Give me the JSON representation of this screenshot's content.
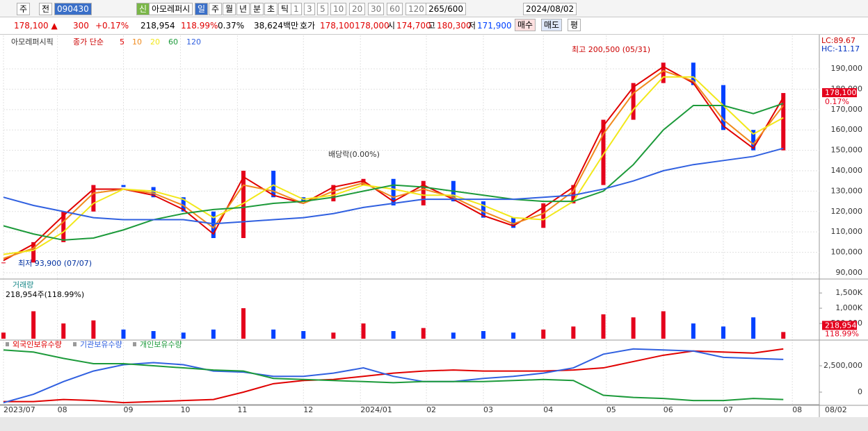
{
  "toolbar": {
    "mode": "주",
    "prev": "전",
    "code": "090430",
    "tag": "신",
    "name": "아모레퍼시",
    "periods": [
      "일",
      "주",
      "월",
      "년",
      "분",
      "초",
      "틱"
    ],
    "intervals": [
      "1",
      "3",
      "5",
      "10",
      "20",
      "30",
      "60",
      "120"
    ],
    "count": "265",
    "count_total": "/600",
    "date": "2024/08/02"
  },
  "quote": {
    "price": "178,100 ▲",
    "change": "300",
    "pct": "+0.17%",
    "volume": "218,954",
    "vol_ratio": "118.99%",
    "turnover": "0.37%",
    "amount": "38,624백만",
    "ask_label": "호가",
    "ask": "178,100",
    "bid": "178,000",
    "open_label": "시",
    "open": "174,700",
    "high_label": "고",
    "high": "180,300",
    "low_label": "저",
    "low": "171,900",
    "buy": "매수",
    "sell": "매도",
    "avg": "평"
  },
  "chart_data": [
    {
      "type": "line",
      "title": "아모레퍼시픽",
      "legend_prefix": "종가 단순",
      "x": [
        0,
        10,
        20,
        30,
        40,
        50,
        60,
        70,
        80,
        90,
        100,
        110,
        120,
        130,
        140,
        150,
        160,
        170,
        180,
        190,
        200,
        210,
        220,
        230,
        240,
        250,
        260
      ],
      "xlim": [
        0,
        272
      ],
      "xticks": [
        {
          "value": 0,
          "label": "2023/07"
        },
        {
          "value": 18,
          "label": "08"
        },
        {
          "value": 40,
          "label": "09"
        },
        {
          "value": 59,
          "label": "10"
        },
        {
          "value": 78,
          "label": "11"
        },
        {
          "value": 100,
          "label": "12"
        },
        {
          "value": 119,
          "label": "2024/01"
        },
        {
          "value": 141,
          "label": "02"
        },
        {
          "value": 160,
          "label": "03"
        },
        {
          "value": 180,
          "label": "04"
        },
        {
          "value": 201,
          "label": "05"
        },
        {
          "value": 220,
          "label": "06"
        },
        {
          "value": 240,
          "label": "07"
        },
        {
          "value": 263,
          "label": "08"
        }
      ],
      "x_end_label": "08/02",
      "ylim": [
        87600,
        205000
      ],
      "yticks": [
        {
          "value": 90000,
          "label": "90,000"
        },
        {
          "value": 100000,
          "label": "100,000"
        },
        {
          "value": 110000,
          "label": "110,000"
        },
        {
          "value": 120000,
          "label": "120,000"
        },
        {
          "value": 130000,
          "label": "130,000"
        },
        {
          "value": 140000,
          "label": "140,000"
        },
        {
          "value": 150000,
          "label": "150,000"
        },
        {
          "value": 160000,
          "label": "160,000"
        },
        {
          "value": 170000,
          "label": "170,000"
        },
        {
          "value": 180000,
          "label": "180,000"
        },
        {
          "value": 190000,
          "label": "190,000"
        }
      ],
      "grid": true,
      "candles": {
        "name": "아모레퍼시픽",
        "up_color": "#e4001c",
        "down_color": "#0041ff",
        "values": [
          95000,
          105000,
          120000,
          133000,
          132000,
          127000,
          120000,
          107000,
          140000,
          127000,
          125000,
          133000,
          136000,
          123000,
          135000,
          125000,
          117000,
          112000,
          124000,
          133000,
          165000,
          183000,
          193000,
          182000,
          160000,
          150000,
          178100
        ]
      },
      "series": [
        {
          "name": "5",
          "color": "#e00000",
          "values": [
            96000,
            104000,
            118000,
            131000,
            131000,
            128000,
            121000,
            109000,
            137000,
            128000,
            124000,
            132000,
            135000,
            125000,
            133000,
            126000,
            118000,
            113000,
            122000,
            132000,
            162000,
            181000,
            191000,
            183000,
            162000,
            151000,
            176000
          ]
        },
        {
          "name": "10",
          "color": "#f08a1c",
          "values": [
            97000,
            102000,
            115000,
            129000,
            131000,
            129000,
            123000,
            112000,
            133000,
            130000,
            124000,
            130000,
            134000,
            127000,
            131000,
            127000,
            120000,
            114000,
            119000,
            130000,
            158000,
            178000,
            189000,
            184000,
            165000,
            153000,
            172000
          ]
        },
        {
          "name": "20",
          "color": "#f2e81a",
          "values": [
            99000,
            101000,
            110000,
            124000,
            131000,
            130000,
            126000,
            117000,
            124000,
            133000,
            126000,
            128000,
            133000,
            131000,
            128000,
            128000,
            123000,
            117000,
            116000,
            125000,
            148000,
            170000,
            186000,
            186000,
            172000,
            158000,
            166000
          ]
        },
        {
          "name": "60",
          "color": "#1c9a3a",
          "values": [
            113000,
            109000,
            106000,
            107000,
            111000,
            116000,
            119000,
            121000,
            122000,
            124000,
            125000,
            127000,
            130000,
            133000,
            132000,
            130000,
            128000,
            126000,
            125000,
            125000,
            130000,
            143000,
            160000,
            172000,
            172000,
            168000,
            173000
          ]
        },
        {
          "name": "120",
          "color": "#3060e0",
          "values": [
            127000,
            123000,
            120000,
            117000,
            116000,
            116000,
            116000,
            114000,
            115000,
            116000,
            117000,
            119000,
            122000,
            124000,
            126000,
            126000,
            126000,
            126000,
            127000,
            128000,
            131000,
            135000,
            140000,
            143000,
            145000,
            147000,
            151000
          ]
        }
      ],
      "annotations": {
        "high": "최고 200,500 (05/31)",
        "low": "최저 93,900 (07/07)",
        "dividend": "배당락(0.00%)",
        "lc": "LC:89.67",
        "hc": "HC:-11.17",
        "last": "178,100",
        "last_pct": "0.17%"
      }
    },
    {
      "type": "bar",
      "title": "거래량",
      "subtitle": "218,954주(118.99%)",
      "ylim": [
        0,
        1890000
      ],
      "yticks": [
        {
          "value": 500000,
          "label": "500,000"
        },
        {
          "value": 1000000,
          "label": "1,000K"
        },
        {
          "value": 1500000,
          "label": "1,500K"
        }
      ],
      "values": [
        200000,
        900000,
        500000,
        600000,
        300000,
        250000,
        200000,
        300000,
        1000000,
        300000,
        250000,
        200000,
        500000,
        250000,
        350000,
        200000,
        250000,
        200000,
        300000,
        400000,
        800000,
        700000,
        900000,
        500000,
        400000,
        700000,
        218954
      ],
      "last_label": "218,954",
      "last_ratio": "118.99%",
      "up_color": "#e4001c",
      "down_color": "#0041ff"
    },
    {
      "type": "line",
      "ylim": [
        -1120000,
        4740000
      ],
      "yticks": [
        0,
        {
          "value": 2500000,
          "label": "2,500,000"
        }
      ],
      "series": [
        {
          "name": "외국인보유수량",
          "color": "#e00000",
          "values": [
            -900000,
            -900000,
            -700000,
            -800000,
            -1000000,
            -900000,
            -800000,
            -700000,
            0,
            800000,
            1100000,
            1200000,
            1500000,
            1800000,
            2000000,
            2100000,
            2000000,
            2000000,
            2000000,
            2100000,
            2300000,
            2900000,
            3500000,
            3900000,
            3800000,
            3700000,
            4100000
          ]
        },
        {
          "name": "기관보유수량",
          "color": "#3060e0",
          "values": [
            -1000000,
            -200000,
            1000000,
            2000000,
            2600000,
            2800000,
            2600000,
            2000000,
            1900000,
            1500000,
            1500000,
            1800000,
            2300000,
            1500000,
            1000000,
            1000000,
            1300000,
            1500000,
            1800000,
            2300000,
            3600000,
            4100000,
            4000000,
            3900000,
            3300000,
            3200000,
            3100000
          ]
        },
        {
          "name": "개인보유수량",
          "color": "#1c9a3a",
          "values": [
            4000000,
            3800000,
            3200000,
            2700000,
            2700000,
            2500000,
            2300000,
            2100000,
            2000000,
            1300000,
            1200000,
            1100000,
            1000000,
            900000,
            1000000,
            1000000,
            1000000,
            1100000,
            1200000,
            1100000,
            -300000,
            -500000,
            -600000,
            -800000,
            -800000,
            -600000,
            -700000
          ]
        }
      ]
    }
  ]
}
